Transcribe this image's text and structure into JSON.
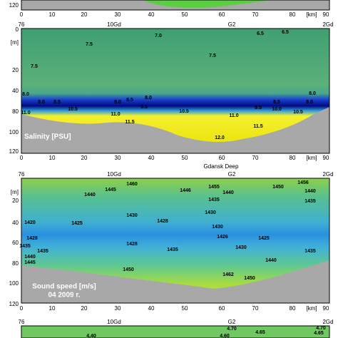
{
  "top_panel": {
    "y_label": "120",
    "x_ticks": [
      "0",
      "10",
      "20",
      "30",
      "40",
      "50",
      "60",
      "70",
      "80",
      "[km]",
      "90"
    ]
  },
  "salinity_panel": {
    "stations": [
      "76",
      "10Gd",
      "G2",
      "2Gd"
    ],
    "y_ticks": [
      "0",
      "[m]",
      "20",
      "40",
      "80",
      "100",
      "120"
    ],
    "x_ticks": [
      "0",
      "10",
      "20",
      "30",
      "40",
      "50",
      "60",
      "70",
      "80",
      "[km]",
      "90"
    ],
    "title": "Salinity [PSU]",
    "location": "Gdansk Deep",
    "contour_labels": [
      "7.0",
      "6.5",
      "6.5",
      "7.5",
      "7.5",
      "7.5",
      "8.0",
      "9.0",
      "8.5",
      "9.0",
      "8.5",
      "8.0",
      "9.5",
      "10.5",
      "10.5",
      "11.0",
      "11.0",
      "11.0",
      "11.5",
      "11.5",
      "12.0",
      "8.5",
      "9.0",
      "8.0",
      "9.5",
      "10.0",
      "10.5"
    ]
  },
  "sound_panel": {
    "stations": [
      "76",
      "10Gd",
      "G2",
      "2Gd"
    ],
    "y_ticks": [
      "[m]",
      "20",
      "40",
      "60",
      "80",
      "100",
      "120"
    ],
    "x_ticks": [
      "0",
      "10",
      "20",
      "30",
      "40",
      "50",
      "60",
      "70",
      "80",
      "[km]",
      "90"
    ],
    "title": "Sound speed [m/s]",
    "date": "04 2009 r.",
    "contour_labels": [
      "1460",
      "1445",
      "1440",
      "1446",
      "1455",
      "1450",
      "1456",
      "1440",
      "1435",
      "1440",
      "1435",
      "1430",
      "1420",
      "1425",
      "1430",
      "1428",
      "1430",
      "1428",
      "1426",
      "1425",
      "1428",
      "1435",
      "1435",
      "1440",
      "1445",
      "1435",
      "1430",
      "1435",
      "1440",
      "1450",
      "1462",
      "1450"
    ]
  },
  "bottom_panel": {
    "stations": [
      "76",
      "10Gd",
      "G2",
      "2Gd"
    ],
    "contour_labels": [
      "4.70",
      "4.65",
      "4.70",
      "4.65",
      "4.40",
      "4.60"
    ]
  }
}
